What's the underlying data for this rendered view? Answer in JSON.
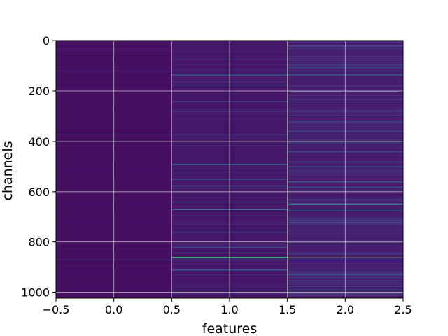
{
  "chart_data": {
    "type": "heatmap",
    "title": "",
    "xlabel": "features",
    "ylabel": "channels",
    "xlim": [
      -0.5,
      2.5
    ],
    "ylim": [
      1023.5,
      -0.5
    ],
    "y_inverted": true,
    "grid": true,
    "colormap": "viridis",
    "n_columns": 3,
    "n_rows": 1024,
    "x_ticks": [
      -0.5,
      0.0,
      0.5,
      1.0,
      1.5,
      2.0,
      2.5
    ],
    "x_tick_labels": [
      "−0.5",
      "0.0",
      "0.5",
      "1.0",
      "1.5",
      "2.0",
      "2.5"
    ],
    "y_ticks": [
      0,
      200,
      400,
      600,
      800,
      1000
    ],
    "y_tick_labels": [
      "0",
      "200",
      "400",
      "600",
      "800",
      "1000"
    ],
    "columns": [
      {
        "feature": 0,
        "base_value": 0.05,
        "bright_rows": [
          {
            "row": 370,
            "value": 0.18
          },
          {
            "row": 870,
            "value": 0.15
          }
        ]
      },
      {
        "feature": 1,
        "base_value": 0.08,
        "bright_rows": [
          {
            "row": 135,
            "value": 0.42
          },
          {
            "row": 175,
            "value": 0.3
          },
          {
            "row": 240,
            "value": 0.25
          },
          {
            "row": 490,
            "value": 0.45
          },
          {
            "row": 550,
            "value": 0.3
          },
          {
            "row": 575,
            "value": 0.28
          },
          {
            "row": 640,
            "value": 0.35
          },
          {
            "row": 670,
            "value": 0.45
          },
          {
            "row": 760,
            "value": 0.3
          },
          {
            "row": 820,
            "value": 0.32
          },
          {
            "row": 860,
            "value": 0.75
          },
          {
            "row": 910,
            "value": 0.4
          },
          {
            "row": 1000,
            "value": 0.28
          }
        ]
      },
      {
        "feature": 2,
        "base_value": 0.1,
        "bright_rows": [
          {
            "row": 20,
            "value": 0.35
          },
          {
            "row": 95,
            "value": 0.3
          },
          {
            "row": 135,
            "value": 0.45
          },
          {
            "row": 200,
            "value": 0.3
          },
          {
            "row": 320,
            "value": 0.3
          },
          {
            "row": 360,
            "value": 0.3
          },
          {
            "row": 400,
            "value": 0.3
          },
          {
            "row": 440,
            "value": 0.28
          },
          {
            "row": 500,
            "value": 0.35
          },
          {
            "row": 560,
            "value": 0.45
          },
          {
            "row": 580,
            "value": 0.35
          },
          {
            "row": 650,
            "value": 0.62
          },
          {
            "row": 675,
            "value": 0.4
          },
          {
            "row": 720,
            "value": 0.3
          },
          {
            "row": 800,
            "value": 0.3
          },
          {
            "row": 862,
            "value": 0.92
          },
          {
            "row": 930,
            "value": 0.35
          },
          {
            "row": 990,
            "value": 0.35
          }
        ]
      }
    ]
  }
}
